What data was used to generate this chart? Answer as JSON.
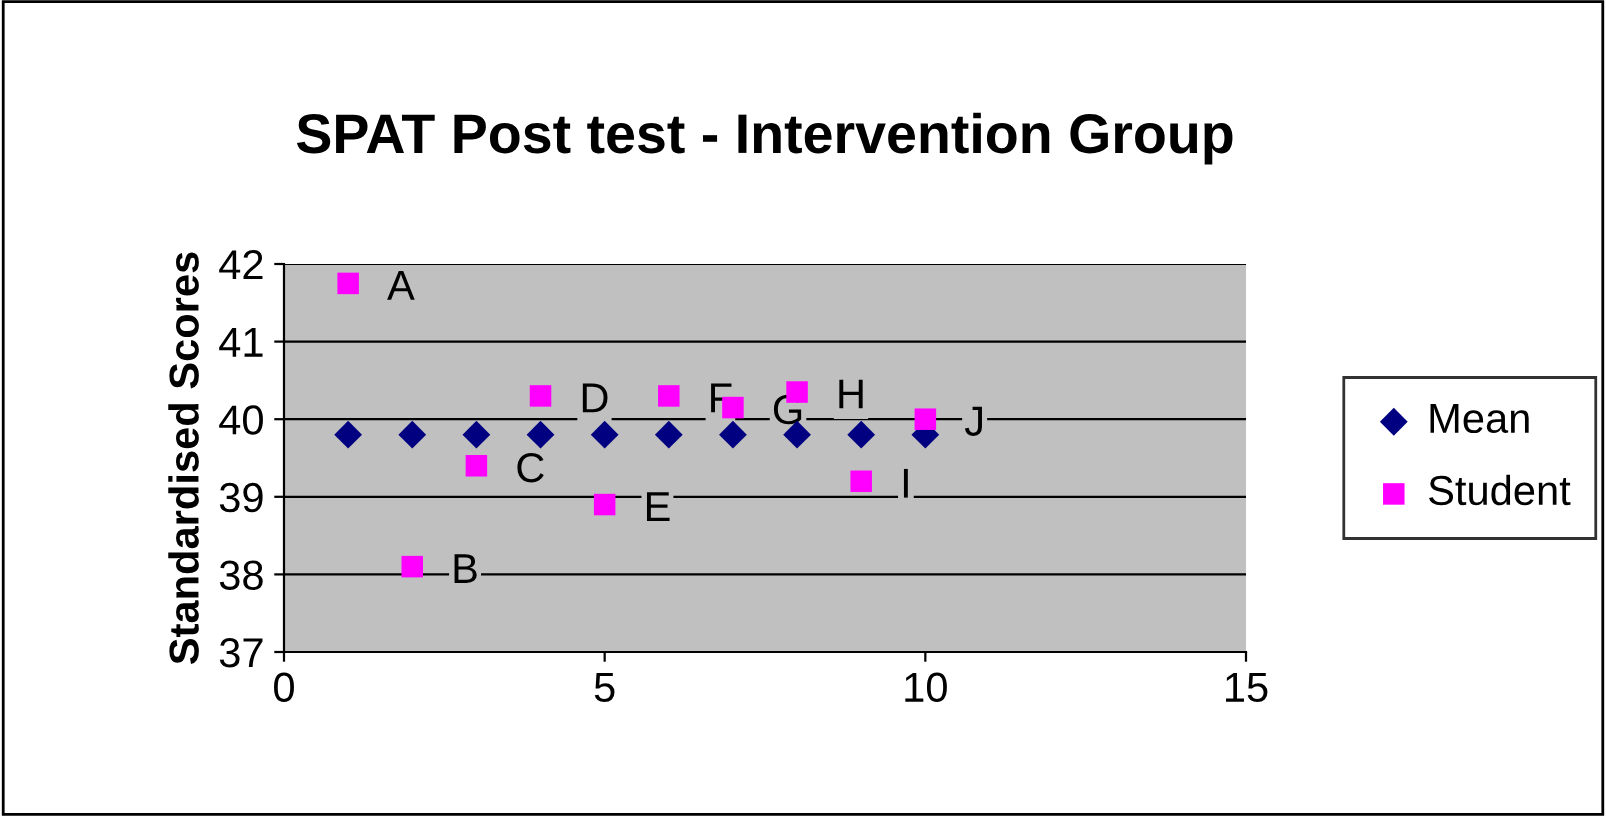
{
  "chart_data": {
    "type": "scatter",
    "title": "SPAT Post test - Intervention Group",
    "ylabel": "Standardised Scores",
    "x": [
      1,
      2,
      3,
      4,
      5,
      6,
      7,
      8,
      9,
      10
    ],
    "series": [
      {
        "name": "Mean",
        "color": "#000080",
        "marker": "diamond",
        "values": [
          39.8,
          39.8,
          39.8,
          39.8,
          39.8,
          39.8,
          39.8,
          39.8,
          39.8,
          39.8
        ]
      },
      {
        "name": "Student",
        "color": "#ff00ff",
        "marker": "square",
        "values": [
          41.75,
          38.1,
          39.4,
          40.3,
          38.9,
          40.3,
          40.15,
          40.35,
          39.2,
          40.0
        ]
      }
    ],
    "annotations": [
      {
        "text": "A",
        "x": 1,
        "y": 41.75
      },
      {
        "text": "B",
        "x": 2,
        "y": 38.1
      },
      {
        "text": "C",
        "x": 3,
        "y": 39.4
      },
      {
        "text": "D",
        "x": 4,
        "y": 40.3
      },
      {
        "text": "E",
        "x": 5,
        "y": 38.9
      },
      {
        "text": "F",
        "x": 6,
        "y": 40.3
      },
      {
        "text": "G",
        "x": 7,
        "y": 40.15
      },
      {
        "text": "H",
        "x": 8,
        "y": 40.35
      },
      {
        "text": "I",
        "x": 9,
        "y": 39.2
      },
      {
        "text": "J",
        "x": 10,
        "y": 40.0
      }
    ],
    "xlim": [
      0,
      15
    ],
    "xticks": [
      0,
      5,
      10,
      15
    ],
    "ylim": [
      37,
      42
    ],
    "yticks": [
      37,
      38,
      39,
      40,
      41,
      42
    ],
    "grid": "y",
    "legend": "right"
  }
}
